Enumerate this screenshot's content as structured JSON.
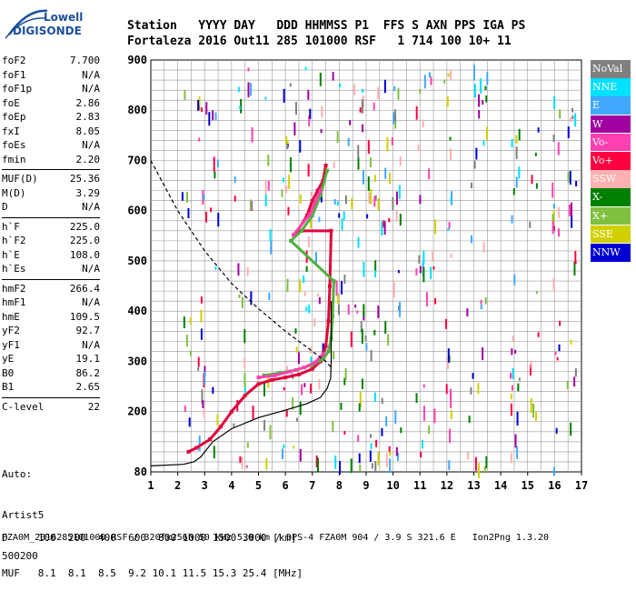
{
  "logo": {
    "line1": "Lowell",
    "line2": "DIGISONDE"
  },
  "header": {
    "line1": "Station   YYYY DAY   DDD HHMMSS P1  FFS S AXN PPS IGA PS",
    "line2": "Fortaleza 2016 Out11 285 101000 RSF   1 714 100 10+ 11"
  },
  "params": [
    [
      [
        "foF2",
        "7.700"
      ],
      [
        "foF1",
        "N/A"
      ],
      [
        "foF1p",
        "N/A"
      ],
      [
        "foE",
        "2.86"
      ],
      [
        "foEp",
        "2.83"
      ],
      [
        "fxI",
        "8.05"
      ],
      [
        "foEs",
        "N/A"
      ],
      [
        "fmin",
        "2.20"
      ]
    ],
    [
      [
        "MUF(D)",
        "25.36"
      ],
      [
        "M(D)",
        "3.29"
      ],
      [
        "D",
        "N/A"
      ]
    ],
    [
      [
        "h`F",
        "225.0"
      ],
      [
        "h`F2",
        "225.0"
      ],
      [
        "h`E",
        "108.0"
      ],
      [
        "h`Es",
        "N/A"
      ]
    ],
    [
      [
        "hmF2",
        "266.4"
      ],
      [
        "hmF1",
        "N/A"
      ],
      [
        "hmE",
        "109.5"
      ],
      [
        "yF2",
        "92.7"
      ],
      [
        "yF1",
        "N/A"
      ],
      [
        "yE",
        "19.1"
      ],
      [
        "B0",
        "86.2"
      ],
      [
        "B1",
        "2.65"
      ]
    ],
    [
      [
        "C-level",
        "22"
      ]
    ]
  ],
  "auto": {
    "l1": "Auto:",
    "l2": "Artist5",
    "l3": "500200"
  },
  "legend": [
    {
      "label": "NoVal",
      "color": "#808080"
    },
    {
      "label": "NNE",
      "color": "#00e0ff"
    },
    {
      "label": "E",
      "color": "#40a8ff"
    },
    {
      "label": "W",
      "color": "#a000a0"
    },
    {
      "label": "Vo-",
      "color": "#ff40b0"
    },
    {
      "label": "Vo+",
      "color": "#ff0040"
    },
    {
      "label": "SSW",
      "color": "#ffb0b0"
    },
    {
      "label": "X-",
      "color": "#008000"
    },
    {
      "label": "X+",
      "color": "#80c040"
    },
    {
      "label": "SSE",
      "color": "#d0d000"
    },
    {
      "label": "NNW",
      "color": "#0000d0"
    }
  ],
  "footer": {
    "line1": "D     100  200  400  600  800 1000 1500 3000 [km]",
    "line2": "MUF   8.1  8.1  8.5  9.2 10.1 11.5 15.3 25.4 [MHz]",
    "line3": "FZA0M_2016285101000.RSF / 320fx256h 50 kHz 5.0 km / DPS-4 FZA0M 904 / 3.9 S 321.6 E   Ion2Png 1.3.20"
  },
  "chart_data": {
    "type": "scatter",
    "xlim": [
      1,
      17
    ],
    "ylim": [
      80,
      900
    ],
    "xticks": [
      1,
      2,
      3,
      4,
      5,
      6,
      7,
      8,
      9,
      10,
      11,
      12,
      13,
      14,
      15,
      16,
      17
    ],
    "yticks": [
      200,
      300,
      400,
      500,
      600,
      700,
      800,
      900
    ],
    "ytick_extra": [
      80
    ],
    "grid": true,
    "series": [
      {
        "name": "Vo+",
        "color": "#e0003a",
        "x": [
          2.4,
          2.7,
          3.2,
          3.6,
          4.0,
          4.5,
          5.0,
          5.5,
          6.0,
          6.5,
          7.0,
          7.3,
          7.5,
          7.6,
          7.65,
          7.7,
          6.6,
          6.4,
          6.8,
          7.0,
          7.2,
          7.4,
          7.5
        ],
        "y": [
          120,
          128,
          145,
          170,
          200,
          232,
          255,
          263,
          268,
          274,
          285,
          300,
          330,
          380,
          450,
          560,
          560,
          555,
          590,
          620,
          640,
          660,
          690
        ]
      },
      {
        "name": "X+",
        "color": "#50b040",
        "x": [
          5.2,
          5.8,
          6.4,
          7.0,
          7.4,
          7.6,
          7.7,
          7.75,
          7.8,
          6.2,
          6.6,
          7.0,
          7.3,
          7.55
        ],
        "y": [
          272,
          277,
          283,
          293,
          305,
          320,
          345,
          390,
          460,
          540,
          560,
          590,
          630,
          680
        ]
      },
      {
        "name": "Vo-",
        "color": "#ff40b0",
        "x": [
          5.0,
          5.6,
          6.2,
          6.7,
          7.1,
          7.4,
          6.3,
          6.9,
          7.3
        ],
        "y": [
          268,
          272,
          280,
          288,
          298,
          315,
          552,
          592,
          640
        ]
      },
      {
        "name": "profile",
        "color": "#000000",
        "x": [
          1.0,
          2.2,
          2.6,
          2.86,
          3.3,
          4.0,
          5.0,
          6.0,
          6.8,
          7.3,
          7.55,
          7.68,
          7.7,
          7.7
        ],
        "y": [
          92,
          95,
          100,
          110,
          140,
          166,
          188,
          203,
          216,
          228,
          246,
          266,
          300,
          420
        ]
      },
      {
        "name": "MUF",
        "color": "#000000",
        "x": [
          1.0,
          2.0,
          3.0,
          4.0,
          5.0,
          6.0,
          7.0,
          7.5,
          7.7
        ],
        "y": [
          700,
          600,
          520,
          455,
          405,
          360,
          320,
          300,
          288
        ]
      }
    ]
  }
}
